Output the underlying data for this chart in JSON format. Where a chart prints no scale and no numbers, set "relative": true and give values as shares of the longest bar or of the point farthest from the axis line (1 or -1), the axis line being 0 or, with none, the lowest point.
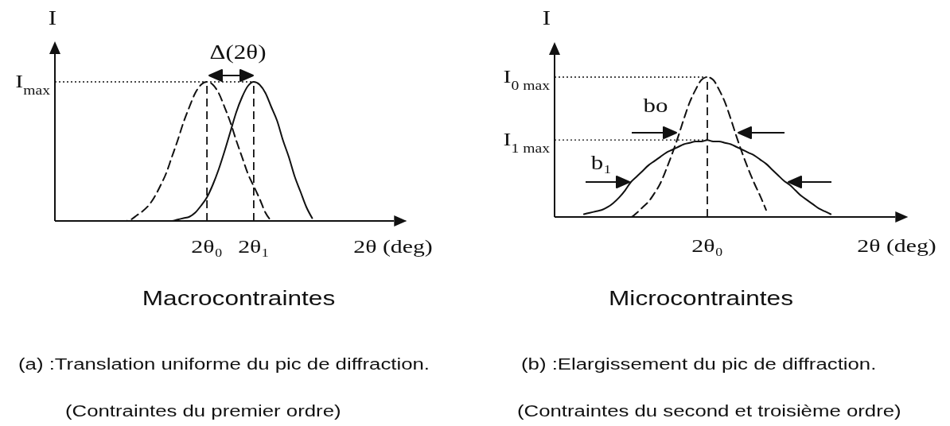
{
  "chart_data": [
    {
      "type": "line",
      "relative": true,
      "title": "Macrocontraintes",
      "xlabel": "2θ (deg)",
      "ylabel": "I",
      "categories": [
        null,
        null,
        null,
        null,
        null,
        null,
        null,
        null,
        null,
        null,
        null,
        null,
        null,
        null,
        null,
        null,
        null,
        null,
        null,
        null,
        null,
        null,
        null,
        null,
        null,
        null,
        "2θ₀",
        null,
        null,
        null,
        null,
        null,
        null,
        null,
        "2θ₁",
        null,
        null,
        null,
        null,
        null,
        null,
        null,
        null,
        null,
        null,
        null,
        null,
        null,
        null,
        null,
        null,
        null,
        null,
        null,
        null,
        null,
        null,
        null,
        null
      ],
      "series": [
        {
          "color": "#111111",
          "line_style": "dashed",
          "values": [
            null,
            null,
            null,
            null,
            null,
            null,
            null,
            null,
            null,
            null,
            null,
            0,
            0,
            0.01,
            0.04,
            0.07,
            0.11,
            0.17,
            0.25,
            0.34,
            0.46,
            0.58,
            0.71,
            0.82,
            0.92,
            0.98,
            1,
            0.98,
            0.92,
            0.82,
            0.71,
            0.58,
            0.46,
            0.34,
            0.25,
            0.16,
            0.06,
            0,
            null,
            null,
            null,
            null,
            null,
            null,
            null,
            null,
            null,
            null,
            null,
            null,
            null,
            null,
            null,
            null,
            null,
            null,
            null,
            null,
            null
          ]
        },
        {
          "color": "#111111",
          "line_style": "solid",
          "values": [
            null,
            null,
            null,
            null,
            null,
            null,
            null,
            null,
            null,
            null,
            null,
            null,
            null,
            null,
            null,
            null,
            null,
            null,
            null,
            0,
            0,
            0.01,
            0.02,
            0.03,
            0.06,
            0.11,
            0.17,
            0.26,
            0.37,
            0.5,
            0.64,
            0.78,
            0.89,
            0.97,
            1,
            0.98,
            0.92,
            0.82,
            0.72,
            0.58,
            0.46,
            0.32,
            0.21,
            0.1,
            0.02,
            null,
            null,
            null,
            null,
            null,
            null,
            null,
            null,
            null,
            null,
            null,
            null,
            null,
            null
          ]
        }
      ],
      "ref_lines": [
        {
          "axis": "y",
          "value": 1,
          "label": "I$_{max}$",
          "line_style": "dotted"
        },
        {
          "axis": "x",
          "value": "2θ₀",
          "line_style": "dashed"
        },
        {
          "axis": "x",
          "value": "2θ₁",
          "line_style": "dashed"
        }
      ],
      "annotations": [
        "Δ(2θ)",
        "(a) :Translation uniforme du pic de diffraction.",
        "(Contraintes du premier ordre)"
      ]
    },
    {
      "type": "line",
      "relative": true,
      "title": "Microcontraintes",
      "xlabel": "2θ (deg)",
      "ylabel": "I",
      "categories": [
        null,
        null,
        null,
        null,
        null,
        null,
        null,
        null,
        null,
        null,
        null,
        null,
        null,
        null,
        null,
        null,
        null,
        null,
        null,
        null,
        null,
        null,
        null,
        null,
        null,
        null,
        null,
        null,
        null,
        null,
        null,
        null,
        null,
        null,
        null,
        null,
        null,
        null,
        null,
        null,
        null,
        null,
        null,
        null,
        null,
        null,
        null,
        null,
        null,
        null,
        null,
        null,
        null,
        null,
        null,
        null,
        null,
        null,
        null
      ],
      "series": [
        {
          "color": "#111111",
          "line_style": "dashed",
          "values": [
            null,
            null,
            null,
            null,
            null,
            null,
            null,
            null,
            null,
            null,
            null,
            0,
            0,
            0,
            0.03,
            0.07,
            0.11,
            0.17,
            0.24,
            0.34,
            0.45,
            0.57,
            0.7,
            0.82,
            0.91,
            0.98,
            1,
            0.98,
            0.91,
            0.82,
            0.7,
            0.57,
            0.45,
            0.34,
            0.24,
            0.15,
            0.05,
            null,
            null,
            null,
            null,
            null,
            null,
            null,
            null,
            null,
            null,
            null,
            null,
            null,
            null,
            null,
            null,
            null,
            null,
            null,
            null,
            null,
            null
          ]
        },
        {
          "color": "#111111",
          "line_style": "solid",
          "values": [
            null,
            null,
            null,
            null,
            null,
            0.02,
            0.03,
            0.04,
            0.05,
            0.07,
            0.1,
            0.14,
            0.19,
            0.25,
            0.29,
            0.33,
            0.37,
            0.4,
            0.43,
            0.46,
            0.48,
            0.5,
            0.52,
            0.53,
            0.54,
            0.54,
            0.55,
            0.54,
            0.54,
            0.53,
            0.52,
            0.5,
            0.48,
            0.46,
            0.44,
            0.41,
            0.38,
            0.34,
            0.3,
            0.26,
            0.23,
            0.19,
            0.15,
            0.12,
            0.09,
            0.06,
            0.04,
            0.02,
            null,
            null,
            null,
            null,
            null,
            null,
            null,
            null,
            null,
            null,
            null
          ]
        }
      ],
      "ref_lines": [
        {
          "axis": "y",
          "value": 1,
          "label": "I$_{0 max}$",
          "line_style": "dotted"
        },
        {
          "axis": "y",
          "value": 0.55,
          "label": "I$_{1 max}$",
          "line_style": "dotted"
        }
      ],
      "annotations": [
        "bo",
        "b₁",
        "2θ₀",
        "(b) :Elargissement du pic de diffraction.",
        "(Contraintes du second et troisième ordre)"
      ]
    }
  ]
}
